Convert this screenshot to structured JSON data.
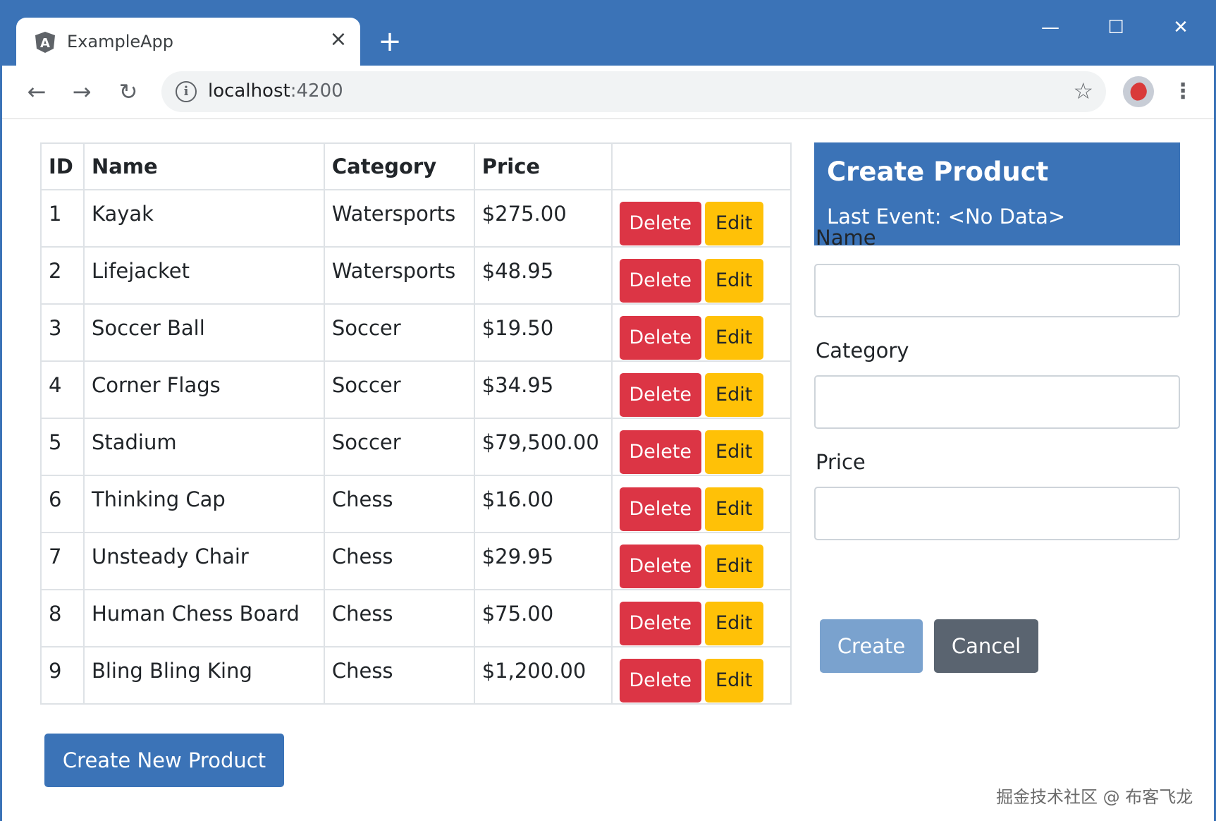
{
  "browser": {
    "tab_title": "ExampleApp",
    "tab_close": "×",
    "new_tab": "+",
    "url_host": "localhost",
    "url_port": ":4200",
    "window_controls": {
      "minimize": "—",
      "maximize": "☐",
      "close": "✕"
    },
    "nav": {
      "back": "←",
      "forward": "→",
      "reload": "↻"
    },
    "info": "i",
    "star": "☆",
    "menu": "⋮"
  },
  "table": {
    "headers": [
      "ID",
      "Name",
      "Category",
      "Price",
      ""
    ],
    "rows": [
      {
        "id": "1",
        "name": "Kayak",
        "category": "Watersports",
        "price": "$275.00"
      },
      {
        "id": "2",
        "name": "Lifejacket",
        "category": "Watersports",
        "price": "$48.95"
      },
      {
        "id": "3",
        "name": "Soccer Ball",
        "category": "Soccer",
        "price": "$19.50"
      },
      {
        "id": "4",
        "name": "Corner Flags",
        "category": "Soccer",
        "price": "$34.95"
      },
      {
        "id": "5",
        "name": "Stadium",
        "category": "Soccer",
        "price": "$79,500.00"
      },
      {
        "id": "6",
        "name": "Thinking Cap",
        "category": "Chess",
        "price": "$16.00"
      },
      {
        "id": "7",
        "name": "Unsteady Chair",
        "category": "Chess",
        "price": "$29.95"
      },
      {
        "id": "8",
        "name": "Human Chess Board",
        "category": "Chess",
        "price": "$75.00"
      },
      {
        "id": "9",
        "name": "Bling Bling King",
        "category": "Chess",
        "price": "$1,200.00"
      }
    ],
    "delete_label": "Delete",
    "edit_label": "Edit"
  },
  "create_new_label": "Create New Product",
  "form": {
    "title": "Create Product",
    "last_event": "Last Event: <No Data>",
    "name_label": "Name",
    "name_value": "",
    "category_label": "Category",
    "category_value": "",
    "price_label": "Price",
    "price_value": "",
    "create_label": "Create",
    "cancel_label": "Cancel"
  },
  "watermark": "掘金技术社区 @ 布客飞龙",
  "colors": {
    "primary": "#3b73b7",
    "danger": "#dc3545",
    "warning": "#ffc107",
    "secondary": "#5a6470"
  }
}
